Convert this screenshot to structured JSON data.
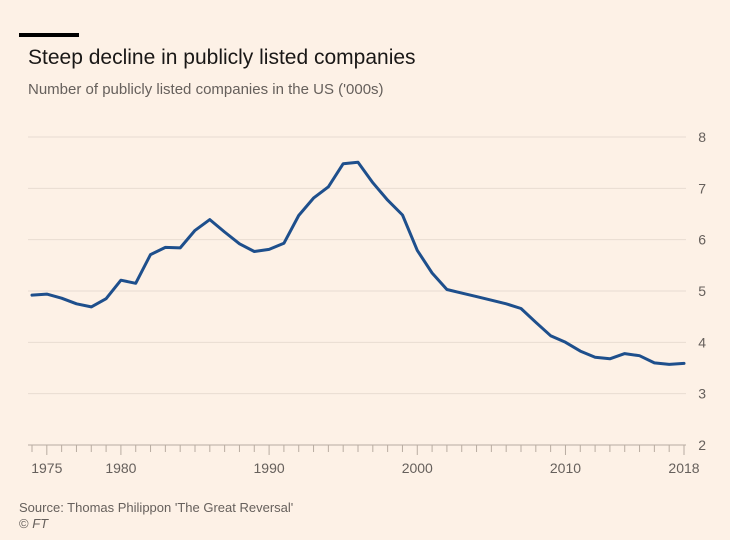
{
  "header": {
    "title": "Steep decline in publicly listed companies",
    "subtitle": "Number of publicly listed companies in the US ('000s)"
  },
  "footer": {
    "source": "Source: Thomas Philippon 'The Great Reversal'",
    "copyright_symbol": "©",
    "copyright_brand": "FT"
  },
  "colors": {
    "background": "#fdf1e6",
    "line": "#1e4f8c",
    "grid": "#e8dcd1",
    "axis": "#b8aca1",
    "tick_text": "#66605c"
  },
  "chart_data": {
    "type": "line",
    "title": "Steep decline in publicly listed companies",
    "subtitle": "Number of publicly listed companies in the US ('000s)",
    "xlabel": "",
    "ylabel": "",
    "xlim": [
      1974,
      2018
    ],
    "ylim": [
      2,
      8
    ],
    "yticks": [
      2,
      3,
      4,
      5,
      6,
      7,
      8
    ],
    "xtick_labels": [
      "1975",
      "1980",
      "1990",
      "2000",
      "2010",
      "2018"
    ],
    "xtick_values": [
      1975,
      1980,
      1990,
      2000,
      2010,
      2018
    ],
    "y_axis_position": "right",
    "grid": true,
    "series": [
      {
        "x": [
          1974,
          1975,
          1976,
          1977,
          1978,
          1979,
          1980,
          1981,
          1982,
          1983,
          1984,
          1985,
          1986,
          1987,
          1988,
          1989,
          1990,
          1991,
          1992,
          1993,
          1994,
          1995,
          1996,
          1997,
          1998,
          1999,
          2000,
          2001,
          2002,
          2003,
          2004,
          2005,
          2006,
          2007,
          2008,
          2009,
          2010,
          2011,
          2012,
          2013,
          2014,
          2015,
          2016,
          2017,
          2018
        ],
        "values": [
          4.92,
          4.94,
          4.86,
          4.75,
          4.69,
          4.85,
          5.21,
          5.15,
          5.71,
          5.85,
          5.84,
          6.18,
          6.39,
          6.15,
          5.92,
          5.77,
          5.81,
          5.93,
          6.47,
          6.81,
          7.03,
          7.48,
          7.51,
          7.11,
          6.77,
          6.48,
          5.79,
          5.35,
          5.03,
          4.96,
          4.89,
          4.82,
          4.75,
          4.66,
          4.39,
          4.13,
          4.0,
          3.83,
          3.71,
          3.68,
          3.78,
          3.74,
          3.6,
          3.57,
          3.59
        ]
      }
    ]
  }
}
